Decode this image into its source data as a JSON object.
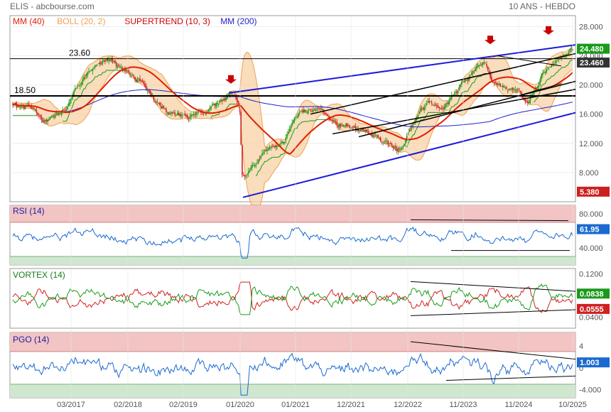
{
  "header": {
    "left": "ELIS - abcbourse.com",
    "right": "10 ANS - HEBDO"
  },
  "colors": {
    "mm40": "#e02000",
    "boll": "#f0a050",
    "boll_fill": "#f7cfa0",
    "supertrend": "#cc0000",
    "mm200": "#2020d0",
    "up": "#1a9a1a",
    "down": "#cc2020",
    "rsi_line": "#1a6ad0",
    "vortex_plus": "#1a9a1a",
    "vortex_minus": "#d02020",
    "pgo_line": "#1a6ad0",
    "zone_high": "#f2c4c4",
    "zone_low": "#cfe6cf",
    "trend_blue": "#1a1adc",
    "trend_black": "#000000",
    "arrow": "#cc0000"
  },
  "chart_data": [
    {
      "panel": "price",
      "type": "line",
      "legend": [
        {
          "label": "MM (40)",
          "color": "#e02000"
        },
        {
          "label": "BOLL (20, 2)",
          "color": "#f0a050"
        },
        {
          "label": "SUPERTREND (10, 3)",
          "color": "#cc0000"
        },
        {
          "label": "MM (200)",
          "color": "#2020d0"
        }
      ],
      "yticks": [
        "28.000",
        "24.000",
        "20.000",
        "16.000",
        "12.000",
        "8.000"
      ],
      "ylim": [
        4,
        29.5
      ],
      "badges": [
        {
          "text": "24.480",
          "bg": "#1a9a1a"
        },
        {
          "text": "23.460",
          "bg": "#333333"
        },
        {
          "text": "5.380",
          "bg": "#cc2020"
        }
      ],
      "levels": [
        {
          "label": "23.60",
          "value": 23.6
        },
        {
          "label": "18.50",
          "value": 18.5
        }
      ],
      "price_path": [
        [
          0,
          17.2
        ],
        [
          0.04,
          16.4
        ],
        [
          0.06,
          14.8
        ],
        [
          0.09,
          16.2
        ],
        [
          0.12,
          20.0
        ],
        [
          0.15,
          22.8
        ],
        [
          0.17,
          23.8
        ],
        [
          0.2,
          21.6
        ],
        [
          0.23,
          20.6
        ],
        [
          0.26,
          17.4
        ],
        [
          0.29,
          15.8
        ],
        [
          0.33,
          16.0
        ],
        [
          0.37,
          18.0
        ],
        [
          0.395,
          18.8
        ],
        [
          0.405,
          17.0
        ],
        [
          0.41,
          7.2
        ],
        [
          0.42,
          8.4
        ],
        [
          0.45,
          10.8
        ],
        [
          0.48,
          12.0
        ],
        [
          0.51,
          16.0
        ],
        [
          0.55,
          17.4
        ],
        [
          0.57,
          15.6
        ],
        [
          0.61,
          13.8
        ],
        [
          0.64,
          13.4
        ],
        [
          0.66,
          11.6
        ],
        [
          0.69,
          11.0
        ],
        [
          0.71,
          14.2
        ],
        [
          0.74,
          17.8
        ],
        [
          0.77,
          17.0
        ],
        [
          0.8,
          19.8
        ],
        [
          0.84,
          23.4
        ],
        [
          0.86,
          20.2
        ],
        [
          0.9,
          19.6
        ],
        [
          0.92,
          18.2
        ],
        [
          0.95,
          22.4
        ],
        [
          0.97,
          23.6
        ],
        [
          1.0,
          24.48
        ]
      ],
      "volatility": 0.65,
      "seed": 7
    },
    {
      "panel": "rsi",
      "label": "RSI (14)",
      "yticks": [
        "80.000",
        "60.000",
        "40.000"
      ],
      "ylim": [
        20,
        90
      ],
      "last": "61.95",
      "last_bg": "#1a6ad0"
    },
    {
      "panel": "vortex",
      "label": "VORTEX (14)",
      "yticks": [
        "0.1200",
        "0.0800",
        "0.0400"
      ],
      "ylim": [
        0.02,
        0.13
      ],
      "last": [
        {
          "text": "0.0838",
          "bg": "#1a9a1a"
        },
        {
          "text": "0.0555",
          "bg": "#d02020"
        }
      ]
    },
    {
      "panel": "pgo",
      "label": "PGO (14)",
      "yticks": [
        "4",
        "0",
        "-4.000"
      ],
      "ylim": [
        -5.5,
        6.5
      ],
      "last": "1.003",
      "last_bg": "#1a6ad0"
    }
  ],
  "xticks": [
    "03/2017",
    "02/2018",
    "02/2019",
    "01/2020",
    "01/2021",
    "12/2021",
    "12/2022",
    "11/2023",
    "11/2024",
    "10/2025"
  ]
}
